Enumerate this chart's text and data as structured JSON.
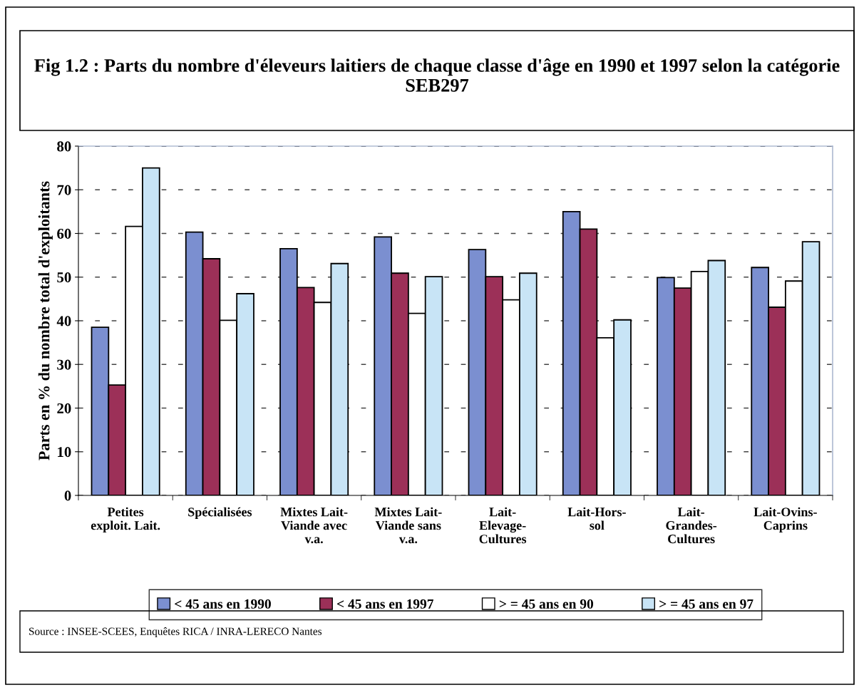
{
  "chart_data": {
    "type": "bar",
    "title": "Fig 1.2 : Parts du nombre d'éleveurs laitiers de chaque classe d'âge en 1990 et 1997 selon la catégorie SEB297",
    "ylabel": "Parts en % du nombre total d'exploitants",
    "categories": [
      "Petites\nexploit. Lait.",
      "Spécialisées",
      "Mixtes Lait-\nViande avec\nv.a.",
      "Mixtes Lait-\nViande sans\nv.a.",
      "Lait-\nElevage-\nCultures",
      "Lait-Hors-\nsol",
      "Lait-\nGrandes-\nCultures",
      "Lait-Ovins-\nCaprins"
    ],
    "series": [
      {
        "name": "< 45 ans en 1990",
        "color": "#7b8fd0",
        "values": [
          38.5,
          60.3,
          56.5,
          59.2,
          56.3,
          65,
          49.9,
          52.2
        ]
      },
      {
        "name": "< 45 ans en 1997",
        "color": "#9c3058",
        "values": [
          25.3,
          54.2,
          47.6,
          50.9,
          50.1,
          61,
          47.5,
          43.1
        ]
      },
      {
        "name": "> = 45 ans en 90",
        "color": "#ffffff",
        "values": [
          61.6,
          40.1,
          44.2,
          41.7,
          44.8,
          36.1,
          51.3,
          49.1
        ]
      },
      {
        "name": "> = 45 ans en 97",
        "color": "#c8e4f6",
        "values": [
          75,
          46.2,
          53.1,
          50.1,
          50.9,
          40.2,
          53.8,
          58.1
        ]
      }
    ],
    "ylim": [
      0,
      80
    ],
    "yticks": [
      0,
      10,
      20,
      30,
      40,
      50,
      60,
      70,
      80
    ],
    "grid": "y",
    "legend": "bottom",
    "annotations": [
      "Source : INSEE-SCEES, Enquêtes RICA / INRA-LERECO Nantes"
    ]
  }
}
